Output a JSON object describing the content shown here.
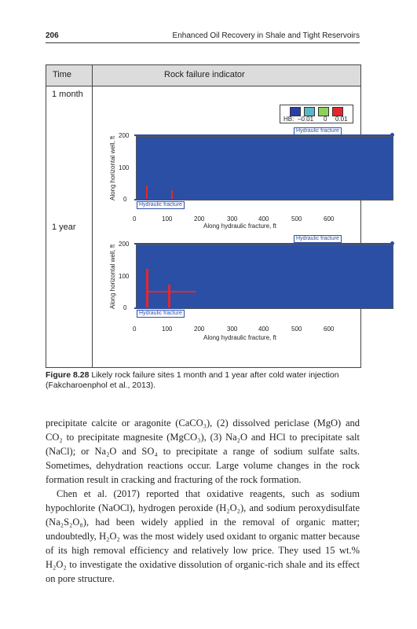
{
  "header": {
    "page_number": "206",
    "running_title": "Enhanced Oil Recovery in Shale and Tight Reservoirs"
  },
  "figure": {
    "col_time": "Time",
    "col_indicator": "Rock failure indicator",
    "row1_label": "1 month",
    "row2_label": "1 year",
    "legend": {
      "label": "HB:",
      "values": [
        "–0.01",
        "0",
        "0.01"
      ],
      "colors": [
        "#2b3ea8",
        "#5ab6c8",
        "#8fd05a",
        "#e8262a"
      ]
    },
    "fracture_label": "Hydraulic fracture",
    "ylabel": "Along horizontal well, ft",
    "xlabel": "Along hydraulic fracture, ft",
    "yticks": [
      "200",
      "100",
      "0"
    ],
    "xticks": [
      "0",
      "100",
      "200",
      "300",
      "400",
      "500",
      "600"
    ],
    "plot_color": "#2c4fa6",
    "failure_color": "#e8262a"
  },
  "caption": {
    "label": "Figure 8.28",
    "text": "Likely rock failure sites 1 month and 1 year after cold water injection (Fakcharoenphol et al., 2013)."
  },
  "body": {
    "p1": "precipitate calcite or aragonite (CaCO₃), (2) dissolved periclase (MgO) and CO₂ to precipitate magnesite (MgCO₃), (3) Na₂O and HCl to precipitate salt (NaCl); or Na₂O and SO₄ to precipitate a range of sodium sulfate salts. Sometimes, dehydration reactions occur. Large volume changes in the rock formation result in cracking and fracturing of the rock formation.",
    "p2": "Chen et al. (2017) reported that oxidative reagents, such as sodium hypochlorite (NaOCl), hydrogen peroxide (H₂O₂), and sodium peroxydisulfate (Na₂S₂O₈), had been widely applied in the removal of organic matter; undoubtedly, H₂O₂ was the most widely used oxidant to organic matter because of its high removal efficiency and relatively low price. They used 15 wt.% H₂O₂ to investigate the oxidative dissolution of organic-rich shale and its effect on pore structure."
  }
}
